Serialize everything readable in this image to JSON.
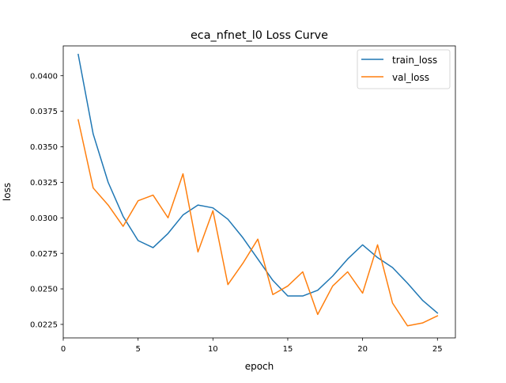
{
  "chart_data": {
    "type": "line",
    "title": "eca_nfnet_l0 Loss Curve",
    "xlabel": "epoch",
    "ylabel": "loss",
    "xlim": [
      0,
      26.2
    ],
    "ylim": [
      0.02155,
      0.0421
    ],
    "x_ticks": [
      0,
      5,
      10,
      15,
      20,
      25
    ],
    "y_ticks": [
      0.0225,
      0.025,
      0.0275,
      0.03,
      0.0325,
      0.035,
      0.0375,
      0.04
    ],
    "x_tick_labels": [
      "0",
      "5",
      "10",
      "15",
      "20",
      "25"
    ],
    "y_tick_labels": [
      "0.0225",
      "0.0250",
      "0.0275",
      "0.0300",
      "0.0325",
      "0.0350",
      "0.0375",
      "0.0400"
    ],
    "grid": false,
    "legend_position": "top-right",
    "x": [
      1,
      2,
      3,
      4,
      5,
      6,
      7,
      8,
      9,
      10,
      11,
      12,
      13,
      14,
      15,
      16,
      17,
      18,
      19,
      20,
      21,
      22,
      23,
      24,
      25
    ],
    "series": [
      {
        "name": "train_loss",
        "color": "#1f77b4",
        "values": [
          0.0415,
          0.0359,
          0.0325,
          0.0301,
          0.0284,
          0.0279,
          0.0289,
          0.0302,
          0.0309,
          0.0307,
          0.0299,
          0.0286,
          0.0271,
          0.0256,
          0.0245,
          0.0245,
          0.0249,
          0.0259,
          0.0271,
          0.0281,
          0.0272,
          0.0265,
          0.0254,
          0.0242,
          0.0233
        ]
      },
      {
        "name": "val_loss",
        "color": "#ff7f0e",
        "values": [
          0.0369,
          0.0321,
          0.0309,
          0.0294,
          0.0312,
          0.0316,
          0.03,
          0.0331,
          0.0276,
          0.0305,
          0.0253,
          0.0268,
          0.0285,
          0.0246,
          0.0252,
          0.0262,
          0.0232,
          0.0252,
          0.0262,
          0.0247,
          0.0281,
          0.024,
          0.0224,
          0.0226,
          0.0231
        ]
      }
    ]
  }
}
